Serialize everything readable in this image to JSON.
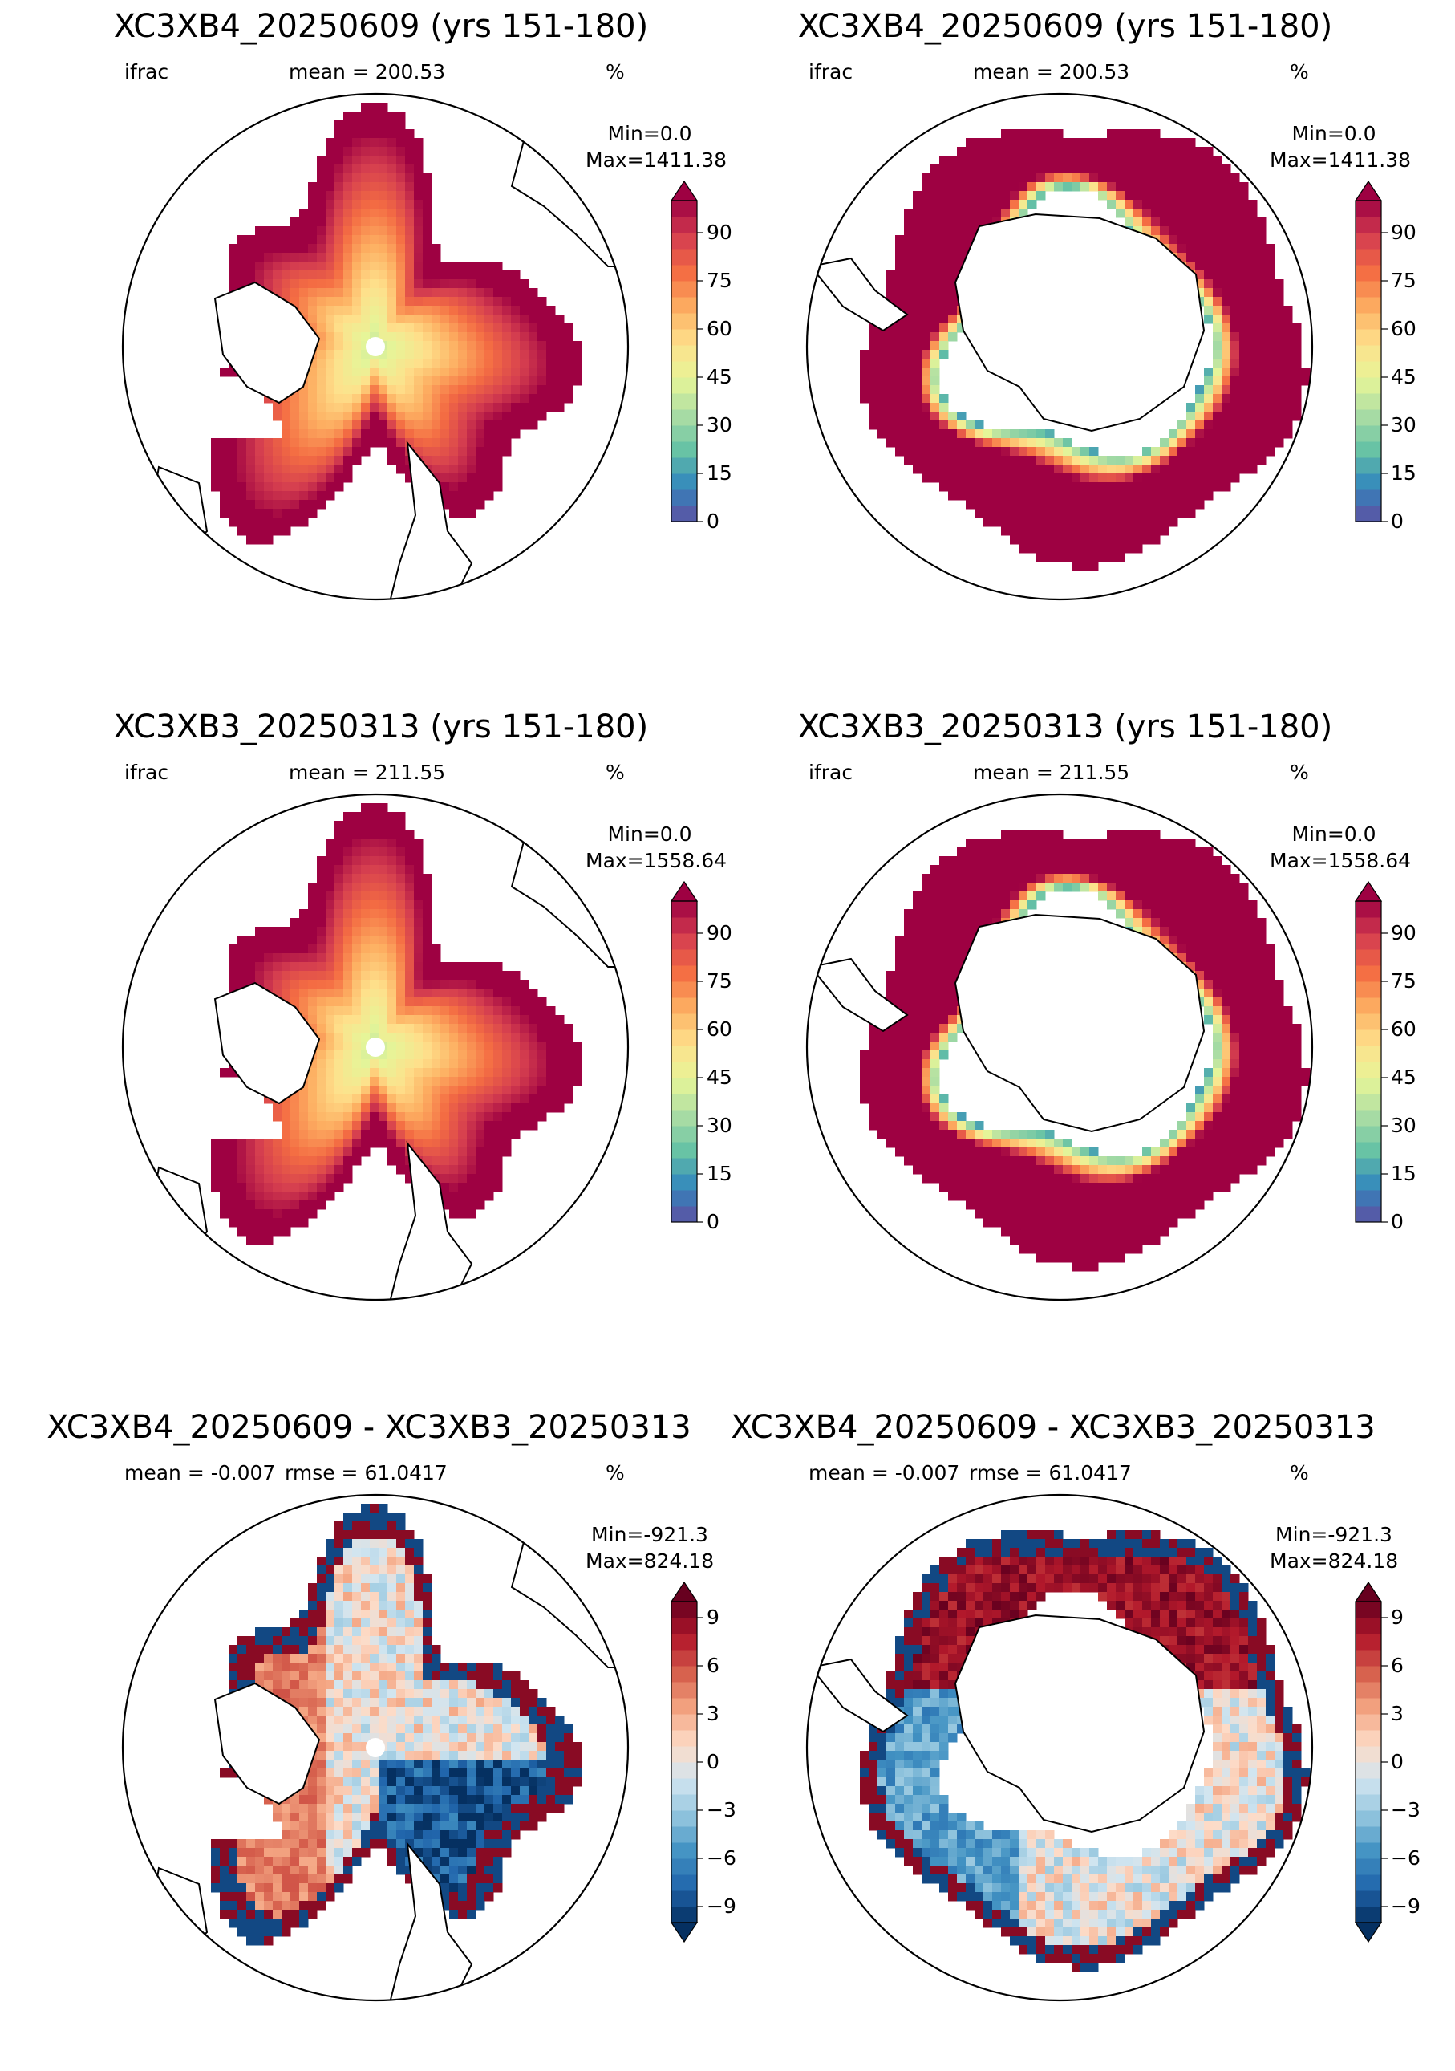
{
  "panels": [
    {
      "id": "arctic-xc3xb4",
      "title": "XC3XB4_20250609 (yrs 151-180)",
      "left_label": "ifrac",
      "center_label": "mean = 200.53",
      "right_label": "%",
      "min_label": "Min=0.0",
      "max_label": "Max=1411.38",
      "colormap": "Spectral_r",
      "colorbar_ticks": [
        "0",
        "15",
        "30",
        "45",
        "60",
        "75",
        "90"
      ],
      "hemisphere": "north"
    },
    {
      "id": "antarctic-xc3xb4",
      "title": "XC3XB4_20250609 (yrs 151-180)",
      "left_label": "ifrac",
      "center_label": "mean = 200.53",
      "right_label": "%",
      "min_label": "Min=0.0",
      "max_label": "Max=1411.38",
      "colormap": "Spectral_r",
      "colorbar_ticks": [
        "0",
        "15",
        "30",
        "45",
        "60",
        "75",
        "90"
      ],
      "hemisphere": "south"
    },
    {
      "id": "arctic-xc3xb3",
      "title": "XC3XB3_20250313 (yrs 151-180)",
      "left_label": "ifrac",
      "center_label": "mean = 211.55",
      "right_label": "%",
      "min_label": "Min=0.0",
      "max_label": "Max=1558.64",
      "colormap": "Spectral_r",
      "colorbar_ticks": [
        "0",
        "15",
        "30",
        "45",
        "60",
        "75",
        "90"
      ],
      "hemisphere": "north"
    },
    {
      "id": "antarctic-xc3xb3",
      "title": "XC3XB3_20250313 (yrs 151-180)",
      "left_label": "ifrac",
      "center_label": "mean = 211.55",
      "right_label": "%",
      "min_label": "Min=0.0",
      "max_label": "Max=1558.64",
      "colormap": "Spectral_r",
      "colorbar_ticks": [
        "0",
        "15",
        "30",
        "45",
        "60",
        "75",
        "90"
      ],
      "hemisphere": "south"
    },
    {
      "id": "arctic-diff",
      "title": "XC3XB4_20250609 - XC3XB3_20250313",
      "left_label": "mean = -0.007",
      "center_label": "rmse = 61.0417",
      "right_label": "%",
      "min_label": "Min=-921.3",
      "max_label": "Max=824.18",
      "colormap": "RdBu_r",
      "colorbar_ticks": [
        "−9",
        "−6",
        "−3",
        "0",
        "3",
        "6",
        "9"
      ],
      "hemisphere": "north"
    },
    {
      "id": "antarctic-diff",
      "title": "XC3XB4_20250609 - XC3XB3_20250313",
      "left_label": "mean = -0.007",
      "center_label": "rmse = 61.0417",
      "right_label": "%",
      "min_label": "Min=-921.3",
      "max_label": "Max=824.18",
      "colormap": "RdBu_r",
      "colorbar_ticks": [
        "−9",
        "−6",
        "−3",
        "0",
        "3",
        "6",
        "9"
      ],
      "hemisphere": "south"
    }
  ],
  "colors": {
    "spectral": [
      "#5e4fa2",
      "#3288bd",
      "#66c2a5",
      "#abdda4",
      "#e6f598",
      "#fee08b",
      "#fdae61",
      "#f46d43",
      "#d53e4f",
      "#9e0142"
    ],
    "rdbu": [
      "#053061",
      "#2166ac",
      "#4393c3",
      "#92c5de",
      "#d1e5f0",
      "#fddbc7",
      "#f4a582",
      "#d6604d",
      "#b2182b",
      "#67001f"
    ],
    "land_outline": "#000000"
  }
}
